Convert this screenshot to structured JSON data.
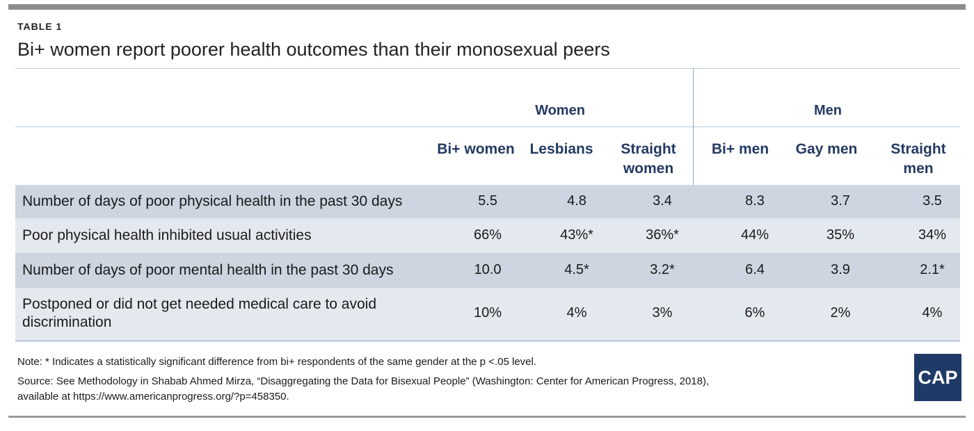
{
  "header": {
    "label": "TABLE 1",
    "title": "Bi+ women report poorer health outcomes than their monosexual peers"
  },
  "groups": {
    "women": "Women",
    "men": "Men"
  },
  "columns": [
    {
      "line1": "",
      "line2": "Bi+ women"
    },
    {
      "line1": "",
      "line2": "Lesbians"
    },
    {
      "line1": "Straight",
      "line2": "women"
    },
    {
      "line1": "",
      "line2": "Bi+ men"
    },
    {
      "line1": "",
      "line2": "Gay men"
    },
    {
      "line1": "Straight",
      "line2": "men"
    }
  ],
  "rows": [
    {
      "label1": "Number of days of poor physical health in the past 30 days",
      "label2": "",
      "values": [
        "5.5",
        "4.8",
        "3.4",
        "8.3",
        "3.7",
        "3.5"
      ]
    },
    {
      "label1": "Poor physical health inhibited usual activities",
      "label2": "",
      "values": [
        "66%",
        "43%*",
        "36%*",
        "44%",
        "35%",
        "34%"
      ]
    },
    {
      "label1": "Number of days of poor mental health in the past 30 days",
      "label2": "",
      "values": [
        "10.0",
        "4.5*",
        "3.2*",
        "6.4",
        "3.9",
        "2.1*"
      ]
    },
    {
      "label1": "Postponed or did not get needed medical care to avoid",
      "label2": "discrimination",
      "values": [
        "10%",
        "4%",
        "3%",
        "6%",
        "2%",
        "4%"
      ]
    }
  ],
  "notes": {
    "note": "Note: * Indicates a statistically significant difference from bi+ respondents of the same gender at the p <.05 level.",
    "source1": "Source: See Methodology in Shabab Ahmed Mirza, “Disaggregating the Data for Bisexual People” (Washington: Center for American Progress, 2018),",
    "source2": "available at https://www.americanprogress.org/?p=458350."
  },
  "logo": {
    "text": "CAP",
    "color": "#1f3a66"
  },
  "colors": {
    "header_text": "#243a63",
    "row_shade": "#ccd5e0",
    "row_light": "#e4e9ef",
    "rule": "#8d8d8d"
  }
}
